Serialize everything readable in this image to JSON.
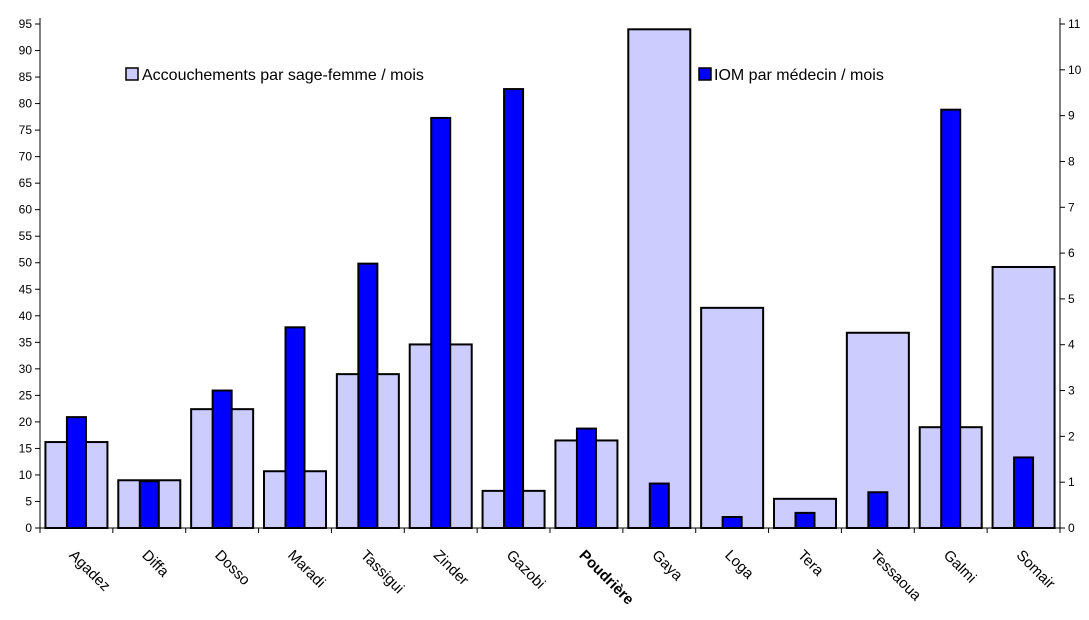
{
  "chart_data": {
    "type": "bar",
    "categories": [
      "Agadez",
      "Diffa",
      "Dosso",
      "Maradi",
      "Tassigui",
      "Zinder",
      "Gazobi",
      "Poudrière",
      "Gaya",
      "Loga",
      "Tera",
      "Tessaoua",
      "Galmi",
      "Somair"
    ],
    "bold_categories": [
      "Poudrière"
    ],
    "series": [
      {
        "name": "Accouchements par sage-femme / mois",
        "axis": "left",
        "color": "#ccccff",
        "values": [
          16.2,
          9.0,
          22.4,
          10.7,
          29.0,
          34.6,
          7.0,
          16.5,
          94.0,
          41.5,
          5.5,
          36.8,
          19.0,
          49.2
        ]
      },
      {
        "name": "IOM par médecin / mois",
        "axis": "right",
        "color": "#0000ff",
        "values": [
          2.42,
          1.02,
          3.0,
          4.38,
          5.77,
          8.95,
          9.58,
          2.17,
          0.97,
          0.24,
          0.33,
          0.78,
          9.13,
          1.54
        ]
      }
    ],
    "y_left": {
      "ylim": [
        0,
        95
      ],
      "ticks": [
        0,
        5,
        10,
        15,
        20,
        25,
        30,
        35,
        40,
        45,
        50,
        55,
        60,
        65,
        70,
        75,
        80,
        85,
        90,
        95
      ]
    },
    "y_right": {
      "ylim": [
        0,
        11
      ],
      "ticks": [
        0,
        1,
        2,
        3,
        4,
        5,
        6,
        7,
        8,
        9,
        10,
        11
      ]
    },
    "grid": false,
    "legend": "top, inside plot"
  }
}
